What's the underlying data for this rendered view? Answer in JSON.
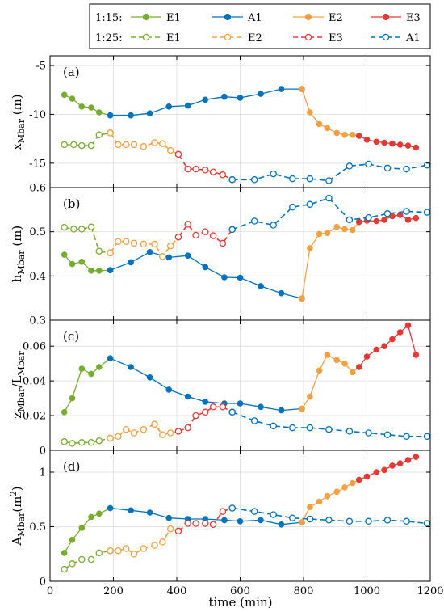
{
  "colors": {
    "E1": "#77ac30",
    "A1": "#0072bd",
    "E2": "#f5a040",
    "E3": "#e53935"
  },
  "legend": {
    "row1_label": "1:15:",
    "row2_label": "1:25:",
    "row1_entries": [
      {
        "label": "E1",
        "color": "E1"
      },
      {
        "label": "A1",
        "color": "A1"
      },
      {
        "label": "E2",
        "color": "E2"
      },
      {
        "label": "E3",
        "color": "E3"
      }
    ],
    "row2_entries": [
      {
        "label": "E1",
        "color": "E1"
      },
      {
        "label": "E2",
        "color": "E2"
      },
      {
        "label": "E3",
        "color": "E3"
      },
      {
        "label": "A1",
        "color": "A1"
      }
    ]
  },
  "x_axis": {
    "label": "time (min)",
    "range": [
      0,
      1200
    ],
    "ticks": [
      0,
      200,
      400,
      600,
      800,
      1000,
      1200
    ]
  },
  "chart_data": [
    {
      "type": "line",
      "panel": "(a)",
      "ylabel": "x_Mbar (m)",
      "ylim": [
        -17.5,
        -4
      ],
      "yticks": [
        -15,
        -10,
        -5
      ],
      "series": [
        {
          "name": "E1",
          "scale": "1:15",
          "style": "solid",
          "color": "E1",
          "x": [
            45,
            70,
            100,
            130,
            155,
            190
          ],
          "y": [
            -8.0,
            -8.4,
            -9.2,
            -9.3,
            -9.8,
            -10.1
          ]
        },
        {
          "name": "A1",
          "scale": "1:15",
          "style": "solid",
          "color": "A1",
          "x": [
            190,
            255,
            315,
            375,
            435,
            490,
            550,
            600,
            665,
            730,
            795
          ],
          "y": [
            -10.1,
            -10.1,
            -9.9,
            -9.2,
            -9.1,
            -8.5,
            -8.2,
            -8.3,
            -7.9,
            -7.4,
            -7.4
          ]
        },
        {
          "name": "E2",
          "scale": "1:15",
          "style": "solid",
          "color": "E2",
          "x": [
            795,
            820,
            850,
            875,
            905,
            930,
            955,
            975
          ],
          "y": [
            -7.4,
            -9.8,
            -11.0,
            -11.4,
            -11.9,
            -12.1,
            -12.1,
            -12.2
          ]
        },
        {
          "name": "E3",
          "scale": "1:15",
          "style": "solid",
          "color": "E3",
          "x": [
            975,
            1000,
            1030,
            1055,
            1080,
            1105,
            1130,
            1155
          ],
          "y": [
            -12.2,
            -12.6,
            -12.8,
            -12.9,
            -13.0,
            -13.1,
            -13.2,
            -13.4
          ]
        },
        {
          "name": "E1",
          "scale": "1:25",
          "style": "dashed",
          "color": "E1",
          "x": [
            45,
            75,
            100,
            130,
            155,
            190
          ],
          "y": [
            -13.1,
            -13.1,
            -13.2,
            -13.2,
            -12.1,
            -11.9
          ]
        },
        {
          "name": "E2",
          "scale": "1:25",
          "style": "dashed",
          "color": "E2",
          "x": [
            190,
            215,
            240,
            265,
            295,
            330,
            355,
            380,
            405
          ],
          "y": [
            -11.9,
            -13.1,
            -13.1,
            -13.1,
            -13.3,
            -12.9,
            -13.0,
            -13.7,
            -14.1
          ]
        },
        {
          "name": "E3",
          "scale": "1:25",
          "style": "dashed",
          "color": "E3",
          "x": [
            405,
            435,
            460,
            490,
            515,
            545,
            575
          ],
          "y": [
            -14.1,
            -15.6,
            -15.6,
            -15.7,
            -15.9,
            -16.2,
            -16.7
          ]
        },
        {
          "name": "A1",
          "scale": "1:25",
          "style": "dashed",
          "color": "A1",
          "x": [
            575,
            645,
            705,
            765,
            820,
            880,
            945,
            1005,
            1065,
            1125,
            1190
          ],
          "y": [
            -16.7,
            -16.7,
            -16.1,
            -16.6,
            -16.6,
            -16.8,
            -15.3,
            -15.1,
            -15.5,
            -15.6,
            -15.2
          ]
        }
      ]
    },
    {
      "type": "line",
      "panel": "(b)",
      "ylabel": "h_Mbar (m)",
      "ylim": [
        0.3,
        0.6
      ],
      "yticks": [
        0.3,
        0.4,
        0.5,
        0.6
      ],
      "series": [
        {
          "name": "E1",
          "scale": "1:15",
          "style": "solid",
          "color": "E1",
          "x": [
            45,
            70,
            100,
            130,
            155,
            190
          ],
          "y": [
            0.448,
            0.427,
            0.432,
            0.412,
            0.412,
            0.413
          ]
        },
        {
          "name": "A1",
          "scale": "1:15",
          "style": "solid",
          "color": "A1",
          "x": [
            190,
            255,
            315,
            375,
            435,
            490,
            550,
            600,
            665,
            730,
            795
          ],
          "y": [
            0.413,
            0.431,
            0.454,
            0.442,
            0.446,
            0.42,
            0.397,
            0.396,
            0.377,
            0.361,
            0.349
          ]
        },
        {
          "name": "E2",
          "scale": "1:15",
          "style": "solid",
          "color": "E2",
          "x": [
            795,
            820,
            850,
            875,
            905,
            930,
            955,
            975
          ],
          "y": [
            0.349,
            0.463,
            0.495,
            0.497,
            0.511,
            0.506,
            0.504,
            0.522
          ]
        },
        {
          "name": "E3",
          "scale": "1:15",
          "style": "solid",
          "color": "E3",
          "x": [
            975,
            1000,
            1030,
            1055,
            1080,
            1105,
            1130,
            1155
          ],
          "y": [
            0.522,
            0.525,
            0.524,
            0.527,
            0.535,
            0.538,
            0.527,
            0.531
          ]
        },
        {
          "name": "E1",
          "scale": "1:25",
          "style": "dashed",
          "color": "E1",
          "x": [
            45,
            75,
            100,
            130,
            155,
            190
          ],
          "y": [
            0.51,
            0.506,
            0.506,
            0.511,
            0.456,
            0.452
          ]
        },
        {
          "name": "E2",
          "scale": "1:25",
          "style": "dashed",
          "color": "E2",
          "x": [
            190,
            215,
            240,
            265,
            295,
            330,
            355,
            380,
            405
          ],
          "y": [
            0.452,
            0.478,
            0.478,
            0.474,
            0.472,
            0.472,
            0.444,
            0.468,
            0.488
          ]
        },
        {
          "name": "E3",
          "scale": "1:25",
          "style": "dashed",
          "color": "E3",
          "x": [
            405,
            435,
            460,
            490,
            515,
            545,
            575
          ],
          "y": [
            0.488,
            0.517,
            0.492,
            0.5,
            0.491,
            0.474,
            0.505
          ]
        },
        {
          "name": "A1",
          "scale": "1:25",
          "style": "dashed",
          "color": "A1",
          "x": [
            575,
            645,
            705,
            765,
            820,
            880,
            945,
            1005,
            1065,
            1125,
            1190
          ],
          "y": [
            0.505,
            0.524,
            0.515,
            0.556,
            0.562,
            0.576,
            0.527,
            0.532,
            0.541,
            0.546,
            0.544
          ]
        }
      ]
    },
    {
      "type": "line",
      "panel": "(c)",
      "ylabel": "z_Mbar / L_Mbar",
      "ylim": [
        0,
        0.075
      ],
      "yticks": [
        0,
        0.02,
        0.04,
        0.06
      ],
      "series": [
        {
          "name": "E1",
          "scale": "1:15",
          "style": "solid",
          "color": "E1",
          "x": [
            45,
            70,
            100,
            130,
            155,
            190
          ],
          "y": [
            0.022,
            0.03,
            0.047,
            0.044,
            0.048,
            0.053
          ]
        },
        {
          "name": "A1",
          "scale": "1:15",
          "style": "solid",
          "color": "A1",
          "x": [
            190,
            255,
            315,
            375,
            435,
            490,
            550,
            600,
            665,
            730,
            795
          ],
          "y": [
            0.053,
            0.048,
            0.042,
            0.035,
            0.031,
            0.028,
            0.027,
            0.027,
            0.025,
            0.023,
            0.024
          ]
        },
        {
          "name": "E2",
          "scale": "1:15",
          "style": "solid",
          "color": "E2",
          "x": [
            795,
            820,
            850,
            875,
            905,
            930,
            955,
            975
          ],
          "y": [
            0.024,
            0.031,
            0.046,
            0.055,
            0.052,
            0.05,
            0.045,
            0.048
          ]
        },
        {
          "name": "E3",
          "scale": "1:15",
          "style": "solid",
          "color": "E3",
          "x": [
            975,
            1000,
            1030,
            1055,
            1080,
            1105,
            1130,
            1155
          ],
          "y": [
            0.048,
            0.054,
            0.058,
            0.06,
            0.064,
            0.068,
            0.072,
            0.055
          ]
        },
        {
          "name": "E1",
          "scale": "1:25",
          "style": "dashed",
          "color": "E1",
          "x": [
            45,
            70,
            100,
            130,
            155,
            190
          ],
          "y": [
            0.005,
            0.004,
            0.0045,
            0.0045,
            0.0055,
            0.007
          ]
        },
        {
          "name": "E2",
          "scale": "1:25",
          "style": "dashed",
          "color": "E2",
          "x": [
            190,
            215,
            240,
            265,
            295,
            330,
            355,
            380,
            405
          ],
          "y": [
            0.007,
            0.008,
            0.012,
            0.01,
            0.012,
            0.015,
            0.009,
            0.01,
            0.011
          ]
        },
        {
          "name": "E3",
          "scale": "1:25",
          "style": "dashed",
          "color": "E3",
          "x": [
            405,
            435,
            460,
            490,
            515,
            545,
            575
          ],
          "y": [
            0.011,
            0.013,
            0.02,
            0.022,
            0.025,
            0.025,
            0.022
          ]
        },
        {
          "name": "A1",
          "scale": "1:25",
          "style": "dashed",
          "color": "A1",
          "x": [
            575,
            645,
            705,
            765,
            820,
            880,
            945,
            1005,
            1065,
            1125,
            1190
          ],
          "y": [
            0.022,
            0.017,
            0.014,
            0.013,
            0.013,
            0.012,
            0.011,
            0.01,
            0.009,
            0.008,
            0.008
          ]
        }
      ]
    },
    {
      "type": "line",
      "panel": "(d)",
      "ylabel": "A_Mbar (m²)",
      "ylim": [
        0,
        1.2
      ],
      "yticks": [
        0,
        0.5,
        1
      ],
      "series": [
        {
          "name": "E1",
          "scale": "1:15",
          "style": "solid",
          "color": "E1",
          "x": [
            45,
            70,
            100,
            130,
            155,
            190
          ],
          "y": [
            0.26,
            0.38,
            0.49,
            0.59,
            0.62,
            0.67
          ]
        },
        {
          "name": "A1",
          "scale": "1:15",
          "style": "solid",
          "color": "A1",
          "x": [
            190,
            255,
            315,
            375,
            435,
            490,
            550,
            600,
            665,
            730,
            795
          ],
          "y": [
            0.67,
            0.65,
            0.63,
            0.58,
            0.57,
            0.57,
            0.56,
            0.55,
            0.56,
            0.52,
            0.54
          ]
        },
        {
          "name": "E2",
          "scale": "1:15",
          "style": "solid",
          "color": "E2",
          "x": [
            795,
            820,
            850,
            875,
            905,
            930,
            955,
            975
          ],
          "y": [
            0.54,
            0.68,
            0.73,
            0.78,
            0.82,
            0.86,
            0.9,
            0.93
          ]
        },
        {
          "name": "E3",
          "scale": "1:15",
          "style": "solid",
          "color": "E3",
          "x": [
            975,
            1000,
            1030,
            1055,
            1080,
            1105,
            1130,
            1155
          ],
          "y": [
            0.93,
            0.96,
            1.0,
            1.02,
            1.06,
            1.08,
            1.11,
            1.14
          ]
        },
        {
          "name": "E1",
          "scale": "1:25",
          "style": "dashed",
          "color": "E1",
          "x": [
            45,
            70,
            100,
            130,
            155,
            190
          ],
          "y": [
            0.11,
            0.16,
            0.2,
            0.2,
            0.26,
            0.28
          ]
        },
        {
          "name": "E2",
          "scale": "1:25",
          "style": "dashed",
          "color": "E2",
          "x": [
            190,
            215,
            240,
            265,
            295,
            330,
            355,
            380,
            405
          ],
          "y": [
            0.28,
            0.28,
            0.3,
            0.25,
            0.3,
            0.33,
            0.36,
            0.48,
            0.46
          ]
        },
        {
          "name": "E3",
          "scale": "1:25",
          "style": "dashed",
          "color": "E3",
          "x": [
            405,
            435,
            460,
            490,
            515,
            545,
            575
          ],
          "y": [
            0.46,
            0.53,
            0.53,
            0.53,
            0.52,
            0.64,
            0.67
          ]
        },
        {
          "name": "A1",
          "scale": "1:25",
          "style": "dashed",
          "color": "A1",
          "x": [
            575,
            645,
            705,
            765,
            820,
            880,
            945,
            1005,
            1065,
            1125,
            1190
          ],
          "y": [
            0.67,
            0.64,
            0.61,
            0.58,
            0.57,
            0.56,
            0.55,
            0.55,
            0.56,
            0.55,
            0.53
          ]
        }
      ]
    }
  ]
}
